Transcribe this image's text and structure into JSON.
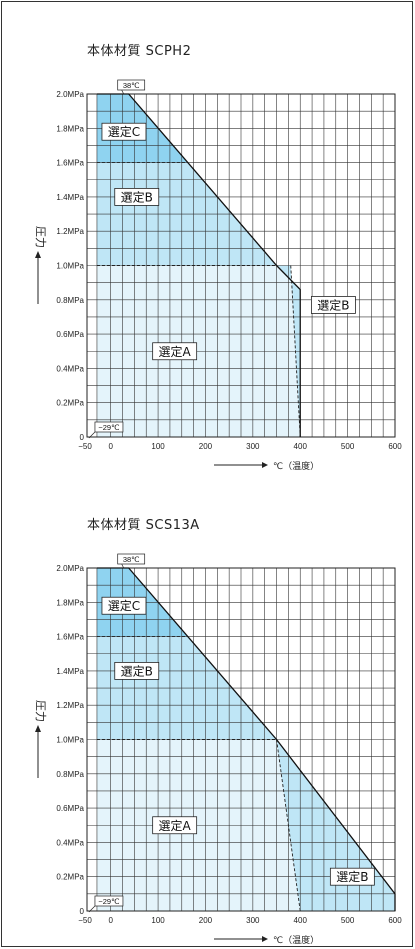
{
  "chart_data": [
    {
      "type": "area",
      "title": "本体材質 SCPH2",
      "xlabel": "℃（温度）",
      "ylabel": "圧力",
      "xlim": [
        -50,
        600
      ],
      "ylim": [
        0,
        2.0
      ],
      "x_ticks": [
        "−50",
        "0",
        "100",
        "200",
        "300",
        "400",
        "500",
        "600"
      ],
      "y_ticks": [
        "0",
        "0.2MPa",
        "0.4MPa",
        "0.6MPa",
        "0.8MPa",
        "1.0MPa",
        "1.2MPa",
        "1.4MPa",
        "1.6MPa",
        "1.8MPa",
        "2.0MPa"
      ],
      "grid": true,
      "boundary": {
        "x": [
          -29,
          38,
          350,
          400,
          400
        ],
        "y": [
          2.0,
          2.0,
          1.0,
          0.86,
          0.0
        ]
      },
      "regions": [
        {
          "name": "選定A",
          "color": "#e4f4fb",
          "polygon": [
            [
              -29,
              0
            ],
            [
              400,
              0
            ],
            [
              380,
              1.0
            ],
            [
              -29,
              1.0
            ]
          ]
        },
        {
          "name": "選定B",
          "color": "#bfe6f6",
          "polygon": [
            [
              -29,
              1.0
            ],
            [
              350,
              1.0
            ],
            [
              162,
              1.6
            ],
            [
              -29,
              1.6
            ]
          ]
        },
        {
          "name": "選定B",
          "color": "#bfe6f6",
          "polygon": [
            [
              350,
              1.0
            ],
            [
              400,
              0.86
            ],
            [
              400,
              0
            ],
            [
              380,
              1.0
            ]
          ]
        },
        {
          "name": "選定C",
          "color": "#8fd3f0",
          "polygon": [
            [
              -29,
              1.6
            ],
            [
              162,
              1.6
            ],
            [
              38,
              2.0
            ],
            [
              -29,
              2.0
            ]
          ]
        }
      ],
      "dashed_lines": [
        {
          "x": [
            -29,
            162
          ],
          "y": [
            1.6,
            1.6
          ]
        },
        {
          "x": [
            -29,
            350
          ],
          "y": [
            1.0,
            1.0
          ]
        },
        {
          "x": [
            380,
            400
          ],
          "y": [
            1.0,
            0
          ]
        }
      ],
      "labels": [
        {
          "text": "選定C",
          "x": 28,
          "y": 1.78
        },
        {
          "text": "選定B",
          "x": 55,
          "y": 1.4
        },
        {
          "text": "選定B",
          "x": 470,
          "y": 0.77
        },
        {
          "text": "選定A",
          "x": 135,
          "y": 0.5
        }
      ],
      "annotations": [
        {
          "text": "38℃",
          "x": 38,
          "y": 2.0
        },
        {
          "text": "−29℃",
          "x": -29,
          "y": 0.0
        }
      ]
    },
    {
      "type": "area",
      "title": "本体材質 SCS13A",
      "xlabel": "℃（温度）",
      "ylabel": "圧力",
      "xlim": [
        -50,
        600
      ],
      "ylim": [
        0,
        2.0
      ],
      "x_ticks": [
        "−50",
        "0",
        "100",
        "200",
        "300",
        "400",
        "500",
        "600"
      ],
      "y_ticks": [
        "0",
        "0.2MPa",
        "0.4MPa",
        "0.6MPa",
        "0.8MPa",
        "1.0MPa",
        "1.2MPa",
        "1.4MPa",
        "1.6MPa",
        "1.8MPa",
        "2.0MPa"
      ],
      "grid": true,
      "boundary": {
        "x": [
          -29,
          38,
          350,
          600,
          600
        ],
        "y": [
          2.0,
          2.0,
          1.0,
          0.1,
          0.0
        ]
      },
      "regions": [
        {
          "name": "選定A",
          "color": "#e4f4fb",
          "polygon": [
            [
              -29,
              0
            ],
            [
              400,
              0
            ],
            [
              350,
              1.0
            ],
            [
              -29,
              1.0
            ]
          ]
        },
        {
          "name": "選定B",
          "color": "#bfe6f6",
          "polygon": [
            [
              -29,
              1.0
            ],
            [
              350,
              1.0
            ],
            [
              162,
              1.6
            ],
            [
              -29,
              1.6
            ]
          ]
        },
        {
          "name": "選定B",
          "color": "#bfe6f6",
          "polygon": [
            [
              350,
              1.0
            ],
            [
              600,
              0.1
            ],
            [
              600,
              0
            ],
            [
              400,
              0
            ]
          ]
        },
        {
          "name": "選定C",
          "color": "#8fd3f0",
          "polygon": [
            [
              -29,
              1.6
            ],
            [
              162,
              1.6
            ],
            [
              38,
              2.0
            ],
            [
              -29,
              2.0
            ]
          ]
        }
      ],
      "dashed_lines": [
        {
          "x": [
            -29,
            162
          ],
          "y": [
            1.6,
            1.6
          ]
        },
        {
          "x": [
            -29,
            350
          ],
          "y": [
            1.0,
            1.0
          ]
        },
        {
          "x": [
            350,
            400
          ],
          "y": [
            1.0,
            0
          ]
        }
      ],
      "labels": [
        {
          "text": "選定C",
          "x": 28,
          "y": 1.78
        },
        {
          "text": "選定B",
          "x": 55,
          "y": 1.4
        },
        {
          "text": "選定A",
          "x": 135,
          "y": 0.5
        },
        {
          "text": "選定B",
          "x": 510,
          "y": 0.2
        }
      ],
      "annotations": [
        {
          "text": "38℃",
          "x": 38,
          "y": 2.0
        },
        {
          "text": "−29℃",
          "x": -29,
          "y": 0.0
        }
      ]
    }
  ]
}
